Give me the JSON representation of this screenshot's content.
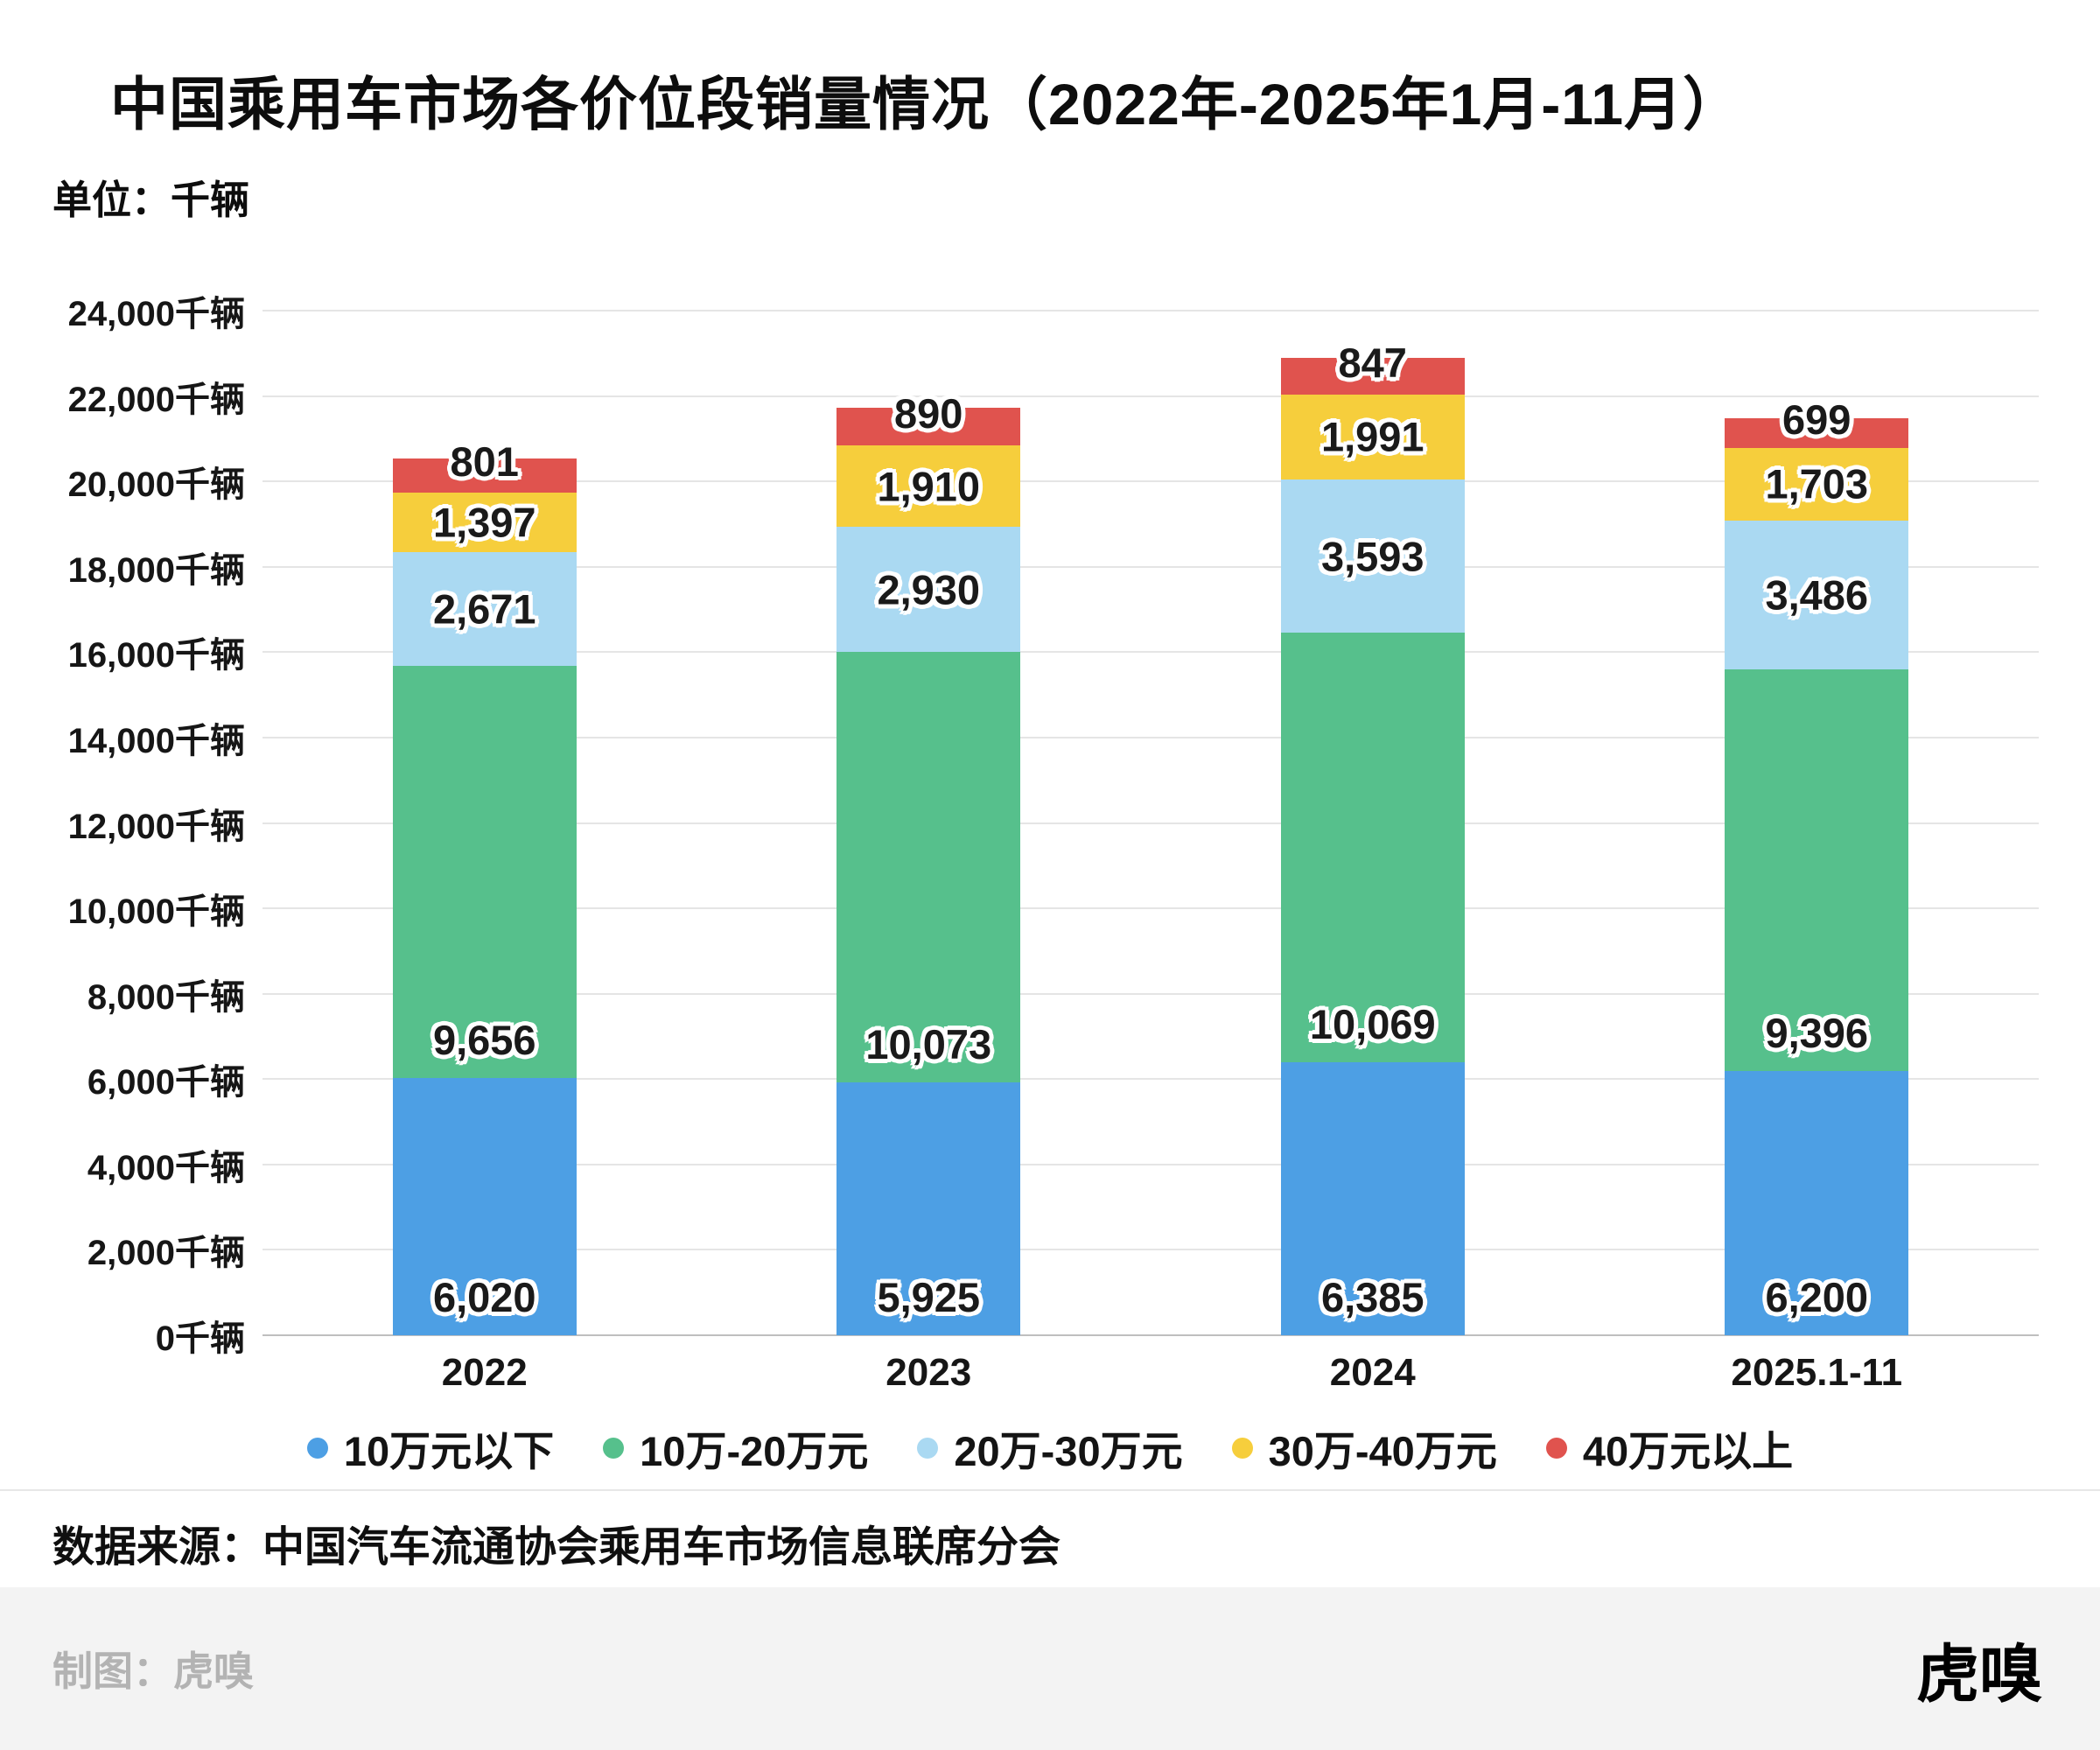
{
  "page": {
    "title": "中国乘用车市场各价位段销量情况（2022年-2025年1月-11月）",
    "unit_label": "单位：千辆",
    "source_label": "数据来源：中国汽车流通协会乘用车市场信息联席分会",
    "credit_label": "制图：虎嗅",
    "logo_text": "虎嗅"
  },
  "chart_data": {
    "type": "bar",
    "stacked": true,
    "title": "中国乘用车市场各价位段销量情况（2022年-2025年1月-11月）",
    "ylabel": "千辆",
    "categories": [
      "2022",
      "2023",
      "2024",
      "2025.1-11"
    ],
    "series": [
      {
        "name": "10万元以下",
        "color": "#4D9FE4",
        "values": [
          6020,
          5925,
          6385,
          6200
        ]
      },
      {
        "name": "10万-20万元",
        "color": "#56C08C",
        "values": [
          9656,
          10073,
          10069,
          9396
        ]
      },
      {
        "name": "20万-30万元",
        "color": "#AAD9F2",
        "values": [
          2671,
          2930,
          3593,
          3486
        ]
      },
      {
        "name": "30万-40万元",
        "color": "#F6CE3C",
        "values": [
          1397,
          1910,
          1991,
          1703
        ]
      },
      {
        "name": "40万元以上",
        "color": "#E0534E",
        "values": [
          801,
          890,
          847,
          699
        ]
      }
    ],
    "totals": [
      20545,
      21728,
      22885,
      21484
    ],
    "ylim": [
      0,
      24000
    ],
    "ytick_step": 2000,
    "ytick_suffix": "千辆",
    "grid": true,
    "legend_position": "bottom"
  }
}
